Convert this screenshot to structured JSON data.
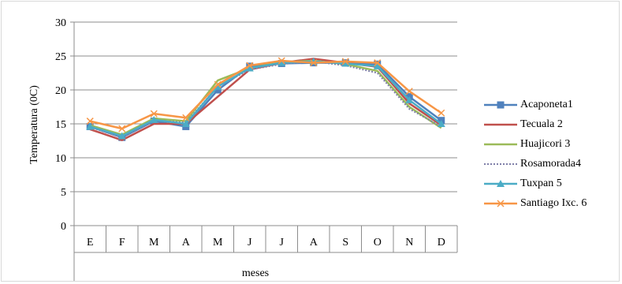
{
  "chart_data": {
    "type": "line",
    "title": "",
    "xlabel": "meses",
    "ylabel": "Temperatura (0C)",
    "ylim": [
      0,
      30
    ],
    "yticks": [
      0,
      5,
      10,
      15,
      20,
      25,
      30
    ],
    "categories": [
      "E",
      "F",
      "M",
      "A",
      "M",
      "J",
      "J",
      "A",
      "S",
      "O",
      "N",
      "D"
    ],
    "grid": "horizontal",
    "legend_position": "right",
    "series": [
      {
        "name": "Acaponeta1",
        "color": "#4f81bd",
        "marker": "square",
        "dash": "solid",
        "values": [
          14.6,
          13.0,
          15.4,
          14.6,
          20.0,
          23.5,
          23.9,
          24.0,
          24.0,
          23.8,
          19.0,
          15.5
        ]
      },
      {
        "name": "Tecuala 2",
        "color": "#c0504d",
        "marker": "none",
        "dash": "solid",
        "values": [
          14.2,
          12.6,
          15.0,
          15.0,
          19.0,
          23.0,
          24.0,
          24.6,
          24.0,
          23.4,
          18.0,
          14.8
        ]
      },
      {
        "name": "Huajicori 3",
        "color": "#9bbb59",
        "marker": "none",
        "dash": "solid",
        "values": [
          14.8,
          13.4,
          15.8,
          15.4,
          21.4,
          23.2,
          24.1,
          24.3,
          23.8,
          22.8,
          17.5,
          14.4
        ]
      },
      {
        "name": "Rosamorada4",
        "color": "#7f7fa8",
        "marker": "none",
        "dash": "dotted",
        "values": [
          14.5,
          13.0,
          15.5,
          15.2,
          20.5,
          23.0,
          23.8,
          24.2,
          23.6,
          22.5,
          17.2,
          14.6
        ]
      },
      {
        "name": "Tuxpan 5",
        "color": "#4bacc6",
        "marker": "triangle",
        "dash": "solid",
        "values": [
          14.6,
          13.2,
          15.6,
          15.0,
          20.5,
          23.2,
          24.0,
          24.2,
          23.9,
          23.5,
          18.5,
          15.0
        ]
      },
      {
        "name": "Santiago Ixc. 6",
        "color": "#f79646",
        "marker": "x",
        "dash": "solid",
        "values": [
          15.4,
          14.3,
          16.5,
          15.9,
          20.8,
          23.6,
          24.3,
          24.0,
          24.2,
          24.0,
          19.8,
          16.6
        ]
      }
    ]
  }
}
